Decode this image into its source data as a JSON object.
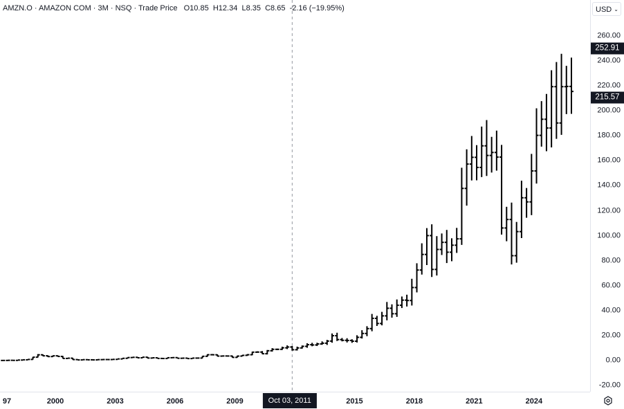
{
  "header": {
    "symbol": "AMZN.O",
    "name": "AMAZON COM",
    "interval": "3M",
    "exchange": "NSQ",
    "price_type": "Trade Price",
    "open": "O10.85",
    "high": "H12.34",
    "low": "L8.35",
    "close": "C8.65",
    "change": "-2.16 (−19.95%)",
    "separator": " · "
  },
  "currency": "USD",
  "crosshair_label": "Oct 03, 2011",
  "price_labels": {
    "high_marker": "252.91",
    "last": "215.57"
  },
  "colors": {
    "bars": "#000000",
    "label_bg": "#131722"
  },
  "chart_data": {
    "type": "ohlc",
    "title": "AMZN.O · AMAZON COM · 3M · NSQ · Trade Price",
    "interval": "quarterly",
    "start": 1997.25,
    "closes": [
      0.1,
      0.2,
      0.15,
      0.4,
      0.6,
      0.9,
      2.7,
      4.6,
      3.8,
      3.2,
      3.8,
      3.3,
      1.7,
      1.9,
      0.78,
      0.51,
      0.71,
      0.6,
      0.54,
      0.73,
      0.81,
      0.8,
      0.94,
      1.3,
      1.8,
      2.4,
      2.6,
      2.2,
      2.7,
      2.0,
      2.2,
      1.7,
      1.65,
      2.26,
      2.36,
      1.83,
      1.93,
      1.6,
      1.97,
      1.99,
      3.42,
      4.66,
      4.63,
      3.57,
      3.67,
      3.64,
      2.56,
      3.57,
      4.18,
      4.67,
      6.73,
      6.79,
      5.46,
      7.85,
      9.0,
      9.0,
      10.2,
      10.85,
      8.65,
      10.1,
      11.4,
      12.7,
      12.5,
      13.3,
      13.9,
      15.6,
      19.9,
      16.8,
      16.2,
      16.1,
      15.5,
      18.6,
      21.7,
      25.6,
      33.8,
      29.7,
      35.8,
      41.9,
      37.5,
      44.3,
      48.4,
      48.1,
      58.5,
      72.5,
      85.0,
      100.1,
      73.0,
      89.0,
      94.7,
      86.8,
      92.4,
      97.5,
      137.9,
      157.4,
      162.8,
      154.7,
      172.0,
      164.3,
      166.7,
      163.0,
      106.2,
      113.0,
      84.0,
      103.3,
      130.4,
      127.1,
      151.9,
      180.4,
      193.3,
      186.3,
      219.4,
      190.3,
      219.4,
      219.6,
      215.57
    ],
    "ylim": [
      -30,
      270
    ],
    "y_ticks": [
      "260.00",
      "240.00",
      "220.00",
      "200.00",
      "180.00",
      "160.00",
      "140.00",
      "120.00",
      "100.00",
      "80.00",
      "60.00",
      "40.00",
      "20.00",
      "0.00",
      "-20.00"
    ],
    "y_tick_values": [
      260,
      240,
      220,
      200,
      180,
      160,
      140,
      120,
      100,
      80,
      60,
      40,
      20,
      0,
      -20
    ],
    "x_ticks": [
      "97",
      "2000",
      "2003",
      "2006",
      "2009",
      "2015",
      "2018",
      "2021",
      "2024"
    ],
    "x_tick_values": [
      1997,
      2000,
      2003,
      2006,
      2009,
      2015,
      2018,
      2021,
      2024
    ],
    "grid": false
  }
}
